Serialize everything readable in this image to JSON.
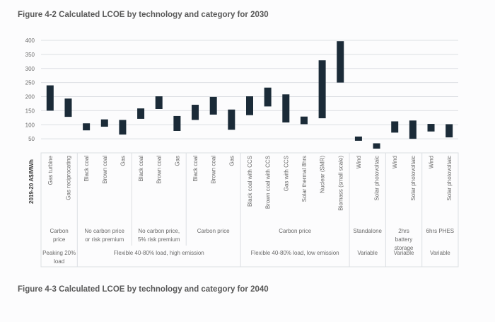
{
  "figures": {
    "fig1_title": "Figure 4-2 Calculated LCOE by technology and category for 2030",
    "fig2_title": "Figure 4-3 Calculated LCOE by technology and category for 2040"
  },
  "chart_data": {
    "type": "bar",
    "subtype": "floating-range",
    "title": "Figure 4-2 Calculated LCOE by technology and category for 2030",
    "xlabel": "",
    "ylabel": "2019-20 A$/MWh",
    "ylim": [
      0,
      400
    ],
    "yticks": [
      50,
      100,
      150,
      200,
      250,
      300,
      350,
      400
    ],
    "grid": true,
    "legend": "none",
    "categories": [
      "Gas turbine",
      "Gas reciprocating",
      "Black coal",
      "Brown coal",
      "Gas",
      "Black coal",
      "Brown coal",
      "Gas",
      "Black coal",
      "Brown coal",
      "Gas",
      "Black coal with CCS",
      "Brown coal with CCS",
      "Gas with CCS",
      "Solar thermal 8hrs",
      "Nuclear (SMR)",
      "Biomass (small scale)",
      "Wind",
      "Solar photovoltaic",
      "Wind",
      "Solar photovoltaic",
      "Wind",
      "Solar photovoltaic"
    ],
    "series": [
      {
        "name": "low",
        "values": [
          150,
          128,
          80,
          93,
          65,
          121,
          156,
          78,
          117,
          136,
          82,
          134,
          165,
          108,
          102,
          123,
          250,
          43,
          15,
          72,
          50,
          76,
          55
        ]
      },
      {
        "name": "high",
        "values": [
          240,
          193,
          105,
          119,
          117,
          158,
          201,
          131,
          171,
          199,
          154,
          201,
          232,
          208,
          129,
          329,
          397,
          58,
          34,
          112,
          115,
          103,
          102
        ]
      }
    ],
    "subgroups": [
      {
        "label": "Carbon price",
        "span": 2
      },
      {
        "label": "No carbon price or risk premium",
        "span": 3
      },
      {
        "label": "No carbon price, 5% risk premium",
        "span": 3
      },
      {
        "label": "Carbon price",
        "span": 3
      },
      {
        "label": "Carbon price",
        "span": 6
      },
      {
        "label": "Standalone",
        "span": 2
      },
      {
        "label": "2hrs battery storage",
        "span": 2
      },
      {
        "label": "6hrs PHES",
        "span": 2
      }
    ],
    "groups": [
      {
        "label": "Peaking 20% load",
        "span": 2
      },
      {
        "label": "Flexible 40-80% load, high emission",
        "span": 9
      },
      {
        "label": "Flexible 40-80% load, low emission",
        "span": 6
      },
      {
        "label": "Variable",
        "span": 2
      },
      {
        "label": "Variable",
        "span": 2
      },
      {
        "label": "Variable",
        "span": 2
      }
    ]
  }
}
